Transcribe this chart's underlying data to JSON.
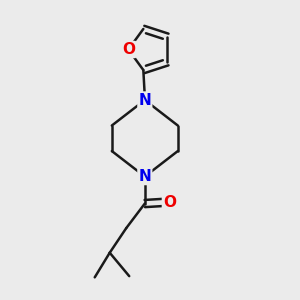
{
  "background_color": "#ebebeb",
  "bond_color": "#1a1a1a",
  "nitrogen_color": "#0000ee",
  "oxygen_color": "#ee0000",
  "line_width": 1.8,
  "font_size_atom": 11,
  "fig_width": 3.0,
  "fig_height": 3.0,
  "dpi": 100,
  "xlim": [
    0,
    10
  ],
  "ylim": [
    0,
    10
  ]
}
